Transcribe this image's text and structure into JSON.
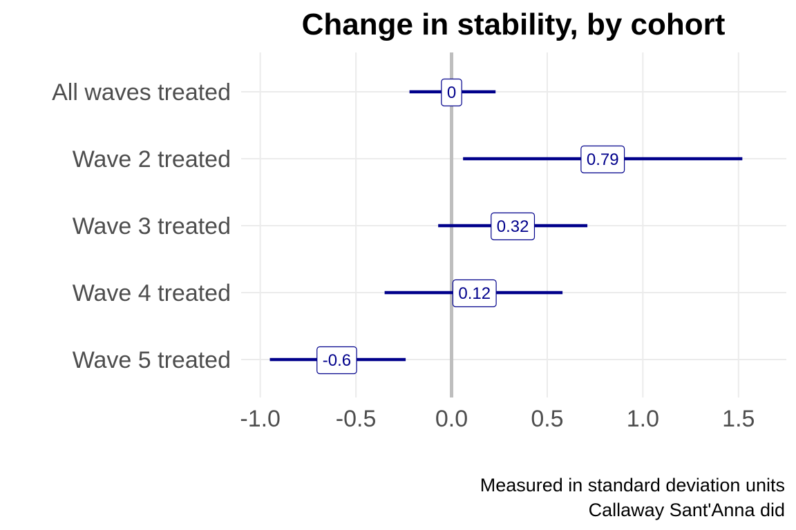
{
  "chart_data": {
    "type": "errorbar",
    "title": "Change in stability, by cohort",
    "caption_lines": [
      "Measured in standard deviation units",
      "Callaway Sant'Anna did"
    ],
    "xlabel": "",
    "ylabel": "",
    "xlim": [
      -1.1,
      1.75
    ],
    "xticks": [
      -1.0,
      -0.5,
      0.0,
      0.5,
      1.0,
      1.5
    ],
    "xtick_labels": [
      "-1.0",
      "-0.5",
      "0.0",
      "0.5",
      "1.0",
      "1.5"
    ],
    "reference_line_x": 0,
    "grid": true,
    "legend": "none",
    "colors": {
      "series": "#00008b",
      "reference_line": "#bebebe",
      "grid": "#ebebeb",
      "label_border": "#00008b",
      "label_fill": "#ffffff"
    },
    "categories": [
      "All waves treated",
      "Wave 2 treated",
      "Wave 3 treated",
      "Wave 4 treated",
      "Wave 5 treated"
    ],
    "estimates": [
      0,
      0.79,
      0.32,
      0.12,
      -0.6
    ],
    "estimate_labels": [
      "0",
      "0.79",
      "0.32",
      "0.12",
      "-0.6"
    ],
    "ci_low": [
      -0.22,
      0.06,
      -0.07,
      -0.35,
      -0.95
    ],
    "ci_high": [
      0.23,
      1.52,
      0.71,
      0.58,
      -0.24
    ]
  }
}
